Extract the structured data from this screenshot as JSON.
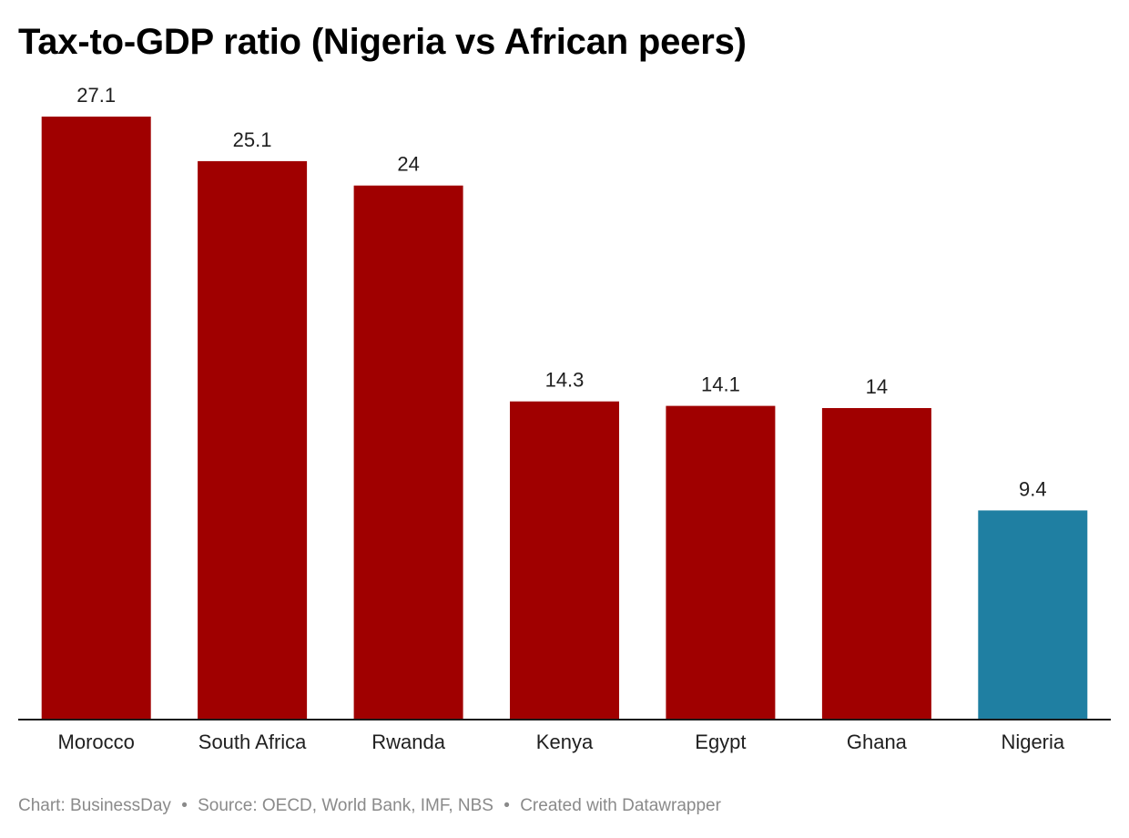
{
  "chart_data": {
    "type": "bar",
    "title": "Tax-to-GDP ratio (Nigeria vs African peers)",
    "categories": [
      "Morocco",
      "South Africa",
      "Rwanda",
      "Kenya",
      "Egypt",
      "Ghana",
      "Nigeria"
    ],
    "values": [
      27.1,
      25.1,
      24,
      14.3,
      14.1,
      14,
      9.4
    ],
    "value_labels": [
      "27.1",
      "25.1",
      "24",
      "14.3",
      "14.1",
      "14",
      "9.4"
    ],
    "highlight_category": "Nigeria",
    "colors": {
      "default_bar": "#a00000",
      "highlight_bar": "#1f7fa2",
      "baseline": "#1a1a1a"
    },
    "xlabel": "",
    "ylabel": "",
    "ylim": [
      0,
      27.1
    ],
    "grid": false,
    "legend": "none"
  },
  "footer": {
    "credit": "Chart: BusinessDay",
    "source": "Source: OECD, World Bank, IMF, NBS",
    "tool": "Created with Datawrapper",
    "separator": "•"
  }
}
